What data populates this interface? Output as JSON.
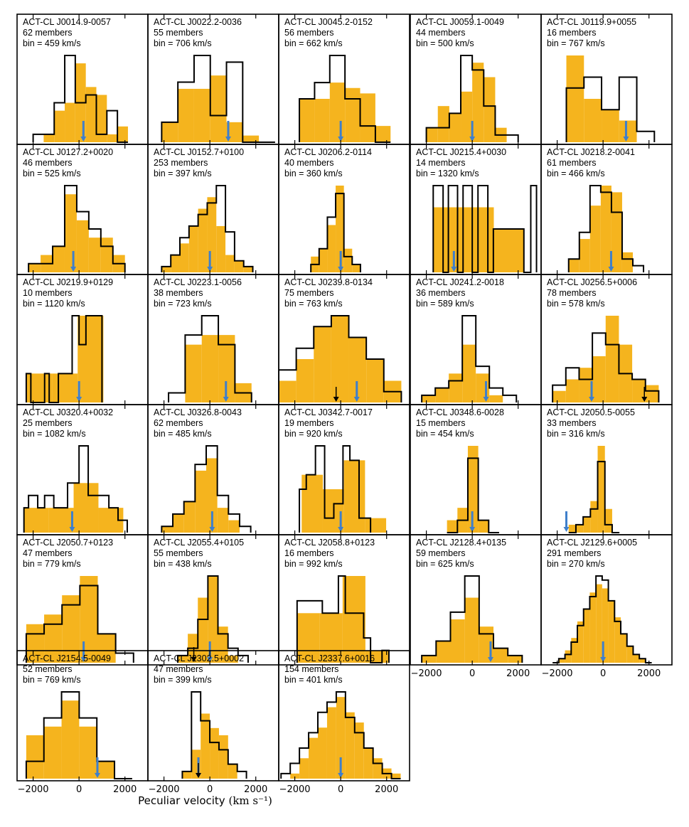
{
  "figure": {
    "xlabel_text": "Peculiar velocity",
    "xlabel_units": "(km s⁻¹)",
    "xaxis_range": [
      -2700,
      3000
    ],
    "xticks": [
      -2000,
      0,
      2000
    ],
    "xtick_labels": [
      "−2000",
      "0",
      "2000"
    ],
    "colors": {
      "filled": "#F5B41E",
      "outline": "#000000",
      "arrow_blue": "#3F7FCB",
      "arrow_black": "#000000",
      "frame": "#000000"
    }
  },
  "chart_data": [
    {
      "type": "histogram",
      "title": "ACT-CL J0014.9-0057",
      "members": "62 members",
      "bin": "bin = 459 km/s",
      "bin_edges": [
        -2000,
        -1541,
        -1082,
        -623,
        -164,
        295,
        754,
        1213,
        1672,
        2131
      ],
      "filled": [
        0,
        1,
        4,
        5,
        10,
        7,
        6,
        1,
        2
      ],
      "outline": [
        1,
        1,
        5,
        11,
        5,
        6,
        1,
        4,
        0
      ],
      "arrows": [
        {
          "v": 190,
          "color": "blue"
        }
      ]
    },
    {
      "type": "histogram",
      "title": "ACT-CL J0022.2-0036",
      "members": "55 members",
      "bin": "bin = 706 km/s",
      "bin_edges": [
        -2100,
        -1394,
        -688,
        18,
        724,
        1430,
        2136,
        2842
      ],
      "filled": [
        3,
        8,
        8,
        10,
        3,
        1,
        0
      ],
      "outline": [
        3,
        9,
        13,
        4,
        12,
        0,
        0
      ],
      "arrows": [
        {
          "v": 800,
          "color": "blue"
        }
      ]
    },
    {
      "type": "histogram",
      "title": "ACT-CL J0045.2-0152",
      "members": "56 members",
      "bin": "bin = 662 km/s",
      "bin_edges": [
        -1800,
        -1138,
        -476,
        186,
        848,
        1510,
        2172
      ],
      "filled": [
        8,
        8,
        11,
        10,
        9,
        3
      ],
      "outline": [
        8,
        11,
        16,
        8,
        3,
        0
      ],
      "arrows": [
        {
          "v": 0,
          "color": "blue"
        }
      ]
    },
    {
      "type": "histogram",
      "title": "ACT-CL J0059.1-0049",
      "members": "44 members",
      "bin": "bin = 500 km/s",
      "bin_edges": [
        -2000,
        -1500,
        -1000,
        -500,
        0,
        500,
        1000,
        1500,
        2000
      ],
      "filled": [
        2,
        5,
        4,
        7,
        11,
        9,
        2,
        0
      ],
      "outline": [
        2,
        2,
        4,
        12,
        10,
        5,
        1,
        1
      ],
      "arrows": [
        {
          "v": 0,
          "color": "blue"
        }
      ]
    },
    {
      "type": "histogram",
      "title": "ACT-CL J0119.9+0055",
      "members": "16 members",
      "bin": "bin = 767 km/s",
      "bin_edges": [
        -1600,
        -833,
        -66,
        701,
        1468,
        2235
      ],
      "filled": [
        8,
        4,
        3,
        2,
        0
      ],
      "outline": [
        5,
        6,
        3,
        6,
        1
      ],
      "arrows": [
        {
          "v": 1000,
          "color": "blue"
        }
      ]
    },
    {
      "type": "histogram",
      "title": "ACT-CL J0127.2+0020",
      "members": "46 members",
      "bin": "bin = 525 km/s",
      "bin_edges": [
        -2200,
        -1675,
        -1150,
        -625,
        -100,
        425,
        950,
        1475,
        2000
      ],
      "filled": [
        1,
        2,
        3,
        9,
        6,
        4,
        4,
        2
      ],
      "outline": [
        1,
        1,
        3,
        10,
        7,
        5,
        3,
        1
      ],
      "arrows": [
        {
          "v": -250,
          "color": "blue"
        }
      ]
    },
    {
      "type": "histogram",
      "title": "ACT-CL J0152.7+0100",
      "members": "253 members",
      "bin": "bin = 397 km/s",
      "bin_edges": [
        -2100,
        -1703,
        -1306,
        -909,
        -512,
        -115,
        282,
        679,
        1076,
        1473,
        1870
      ],
      "filled": [
        1,
        3,
        5,
        8,
        11,
        13,
        8,
        3,
        2,
        1
      ],
      "outline": [
        1,
        3,
        6,
        8,
        10,
        12,
        15,
        7,
        2,
        1
      ],
      "arrows": [
        {
          "v": 0,
          "color": "blue"
        }
      ]
    },
    {
      "type": "histogram",
      "title": "ACT-CL J0206.2-0114",
      "members": "40 members",
      "bin": "bin = 360 km/s",
      "bin_edges": [
        -1300,
        -940,
        -580,
        -220,
        140,
        500,
        860
      ],
      "filled": [
        2,
        3,
        6,
        11,
        3,
        1
      ],
      "outline": [
        1,
        3,
        7,
        10,
        2,
        1
      ],
      "arrows": [
        {
          "v": 0,
          "color": "blue"
        }
      ]
    },
    {
      "type": "histogram",
      "title": "ACT-CL J0215.4+0030",
      "members": "14 members",
      "bin": "bin = 1320 km/s",
      "bin_edges": [
        -1700,
        -380,
        940,
        2260
      ],
      "filled": [
        3,
        3,
        2
      ],
      "outline": [
        4,
        4,
        4
      ],
      "outline_edges": [
        -1700,
        -1270,
        -1040,
        -640,
        -400,
        0,
        250,
        680,
        920,
        2250,
        2550,
        2800
      ],
      "outline_steps": [
        4,
        0,
        4,
        0,
        4,
        0,
        4,
        0,
        2,
        0,
        4
      ],
      "arrows": [
        {
          "v": -800,
          "color": "blue"
        }
      ]
    },
    {
      "type": "histogram",
      "title": "ACT-CL J0218.2-0041",
      "members": "61 members",
      "bin": "bin = 466 km/s",
      "bin_edges": [
        -1500,
        -1034,
        -568,
        -102,
        364,
        830,
        1296,
        1762
      ],
      "filled": [
        2,
        5,
        10,
        13,
        12,
        3,
        0
      ],
      "outline": [
        2,
        6,
        13,
        12,
        9,
        2,
        1
      ],
      "arrows": [
        {
          "v": 350,
          "color": "blue"
        }
      ]
    },
    {
      "type": "histogram",
      "title": "ACT-CL J0219.9+0129",
      "members": "10 members",
      "bin": "bin = 1120 km/s",
      "bin_edges": [
        -2300,
        -1180,
        -60,
        1060
      ],
      "filled": [
        1,
        1,
        3
      ],
      "outline": [
        1,
        1,
        3
      ],
      "outline_edges": [
        -2300,
        -2100,
        -1500,
        -1300,
        -900,
        -300,
        0,
        300,
        1000
      ],
      "outline_steps": [
        1,
        0,
        1,
        0,
        1,
        3,
        2,
        3
      ],
      "arrows": [
        {
          "v": 0,
          "color": "blue"
        }
      ]
    },
    {
      "type": "histogram",
      "title": "ACT-CL J0223.1-0056",
      "members": "38 members",
      "bin": "bin = 723 km/s",
      "bin_edges": [
        -1800,
        -1077,
        -354,
        369,
        1092,
        1815
      ],
      "filled": [
        0,
        6,
        7,
        7,
        2
      ],
      "outline": [
        1,
        7,
        9,
        6,
        1
      ],
      "arrows": [
        {
          "v": 700,
          "color": "blue"
        }
      ]
    },
    {
      "type": "histogram",
      "title": "ACT-CL J0239.8-0134",
      "members": "75 members",
      "bin": "bin = 763 km/s",
      "bin_edges": [
        -2700,
        -1937,
        -1174,
        -411,
        352,
        1115,
        1878,
        2641
      ],
      "filled": [
        2,
        4,
        7,
        8,
        6,
        4,
        2
      ],
      "outline": [
        3,
        5,
        7,
        8,
        6,
        4,
        1
      ],
      "arrows": [
        {
          "v": 700,
          "color": "blue"
        },
        {
          "v": -200,
          "color": "black"
        }
      ]
    },
    {
      "type": "histogram",
      "title": "ACT-CL J0241.2-0018",
      "members": "36 members",
      "bin": "bin = 589 km/s",
      "bin_edges": [
        -2200,
        -1611,
        -1022,
        -433,
        156,
        745,
        1334,
        1923
      ],
      "filled": [
        1,
        2,
        4,
        8,
        4,
        1,
        0
      ],
      "outline": [
        1,
        2,
        3,
        12,
        5,
        2,
        1
      ],
      "arrows": [
        {
          "v": 600,
          "color": "blue"
        }
      ]
    },
    {
      "type": "histogram",
      "title": "ACT-CL J0256.5+0006",
      "members": "78 members",
      "bin": "bin = 578 km/s",
      "bin_edges": [
        -2200,
        -1622,
        -1044,
        -466,
        112,
        690,
        1268,
        1846,
        2424
      ],
      "filled": [
        2,
        4,
        6,
        8,
        15,
        10,
        4,
        3
      ],
      "outline": [
        3,
        6,
        4,
        12,
        10,
        5,
        4,
        2
      ],
      "arrows": [
        {
          "v": -500,
          "color": "blue"
        },
        {
          "v": 1800,
          "color": "black"
        }
      ]
    },
    {
      "type": "histogram",
      "title": "ACT-CL J0320.4+0032",
      "members": "25 members",
      "bin": "bin = 1082 km/s",
      "bin_edges": [
        -2400,
        -1318,
        -236,
        846,
        1928
      ],
      "filled": [
        2,
        2,
        4,
        2
      ],
      "outline": [
        2,
        2,
        5,
        2
      ],
      "outline_edges": [
        -2400,
        -2200,
        -1800,
        -1500,
        -1100,
        -500,
        0,
        400,
        800,
        1300,
        1700,
        2100
      ],
      "outline_steps": [
        2,
        3,
        2,
        3,
        2,
        4,
        7,
        3,
        3,
        2,
        1
      ],
      "arrows": [
        {
          "v": -300,
          "color": "blue"
        }
      ]
    },
    {
      "type": "histogram",
      "title": "ACT-CL J0326.8-0043",
      "members": "62 members",
      "bin": "bin = 485 km/s",
      "bin_edges": [
        -2100,
        -1615,
        -1130,
        -645,
        -160,
        325,
        810,
        1295,
        1780
      ],
      "filled": [
        1,
        3,
        5,
        10,
        12,
        4,
        2,
        0
      ],
      "outline": [
        1,
        3,
        5,
        11,
        14,
        6,
        3,
        1
      ],
      "arrows": [
        {
          "v": 100,
          "color": "blue"
        }
      ]
    },
    {
      "type": "histogram",
      "title": "ACT-CL J0342.7-0017",
      "members": "19 members",
      "bin": "bin = 920 km/s",
      "bin_edges": [
        -1700,
        -780,
        140,
        1060,
        1980
      ],
      "filled": [
        4,
        3,
        5,
        1
      ],
      "outline": [
        5,
        2,
        6,
        1
      ],
      "outline_edges": [
        -1800,
        -1500,
        -1100,
        -700,
        -300,
        100,
        400,
        800,
        1300
      ],
      "outline_steps": [
        3,
        4,
        6,
        1,
        2,
        6,
        5,
        1
      ],
      "arrows": [
        {
          "v": 0,
          "color": "blue"
        }
      ]
    },
    {
      "type": "histogram",
      "title": "ACT-CL J0348.6-0028",
      "members": "15 members",
      "bin": "bin = 454 km/s",
      "bin_edges": [
        -1100,
        -646,
        -192,
        262,
        716,
        1170
      ],
      "filled": [
        1,
        2,
        7,
        1,
        0
      ],
      "outline": [
        0,
        1,
        6,
        1,
        0
      ],
      "arrows": [
        {
          "v": 0,
          "color": "blue"
        }
      ]
    },
    {
      "type": "histogram",
      "title": "ACT-CL J2050.5-0055",
      "members": "33 members",
      "bin": "bin = 316 km/s",
      "bin_edges": [
        -1500,
        -1184,
        -868,
        -552,
        -236,
        80,
        396,
        712
      ],
      "filled": [
        1,
        1,
        2,
        4,
        11,
        3,
        0
      ],
      "outline": [
        0,
        1,
        2,
        3,
        9,
        1,
        0
      ],
      "arrows": [
        {
          "v": -1600,
          "color": "blue"
        }
      ]
    },
    {
      "type": "histogram",
      "title": "ACT-CL J2050.7+0123",
      "members": "47 members",
      "bin": "bin = 779 km/s",
      "bin_edges": [
        -2300,
        -1521,
        -742,
        37,
        816,
        1595,
        2374
      ],
      "filled": [
        4,
        5,
        7,
        9,
        3,
        0
      ],
      "outline": [
        3,
        4,
        6,
        8,
        3,
        1
      ],
      "arrows": [
        {
          "v": 200,
          "color": "blue"
        }
      ]
    },
    {
      "type": "histogram",
      "title": "ACT-CL J2055.4+0105",
      "members": "55 members",
      "bin": "bin = 438 km/s",
      "bin_edges": [
        -1400,
        -962,
        -524,
        -86,
        352,
        790,
        1228,
        1666
      ],
      "filled": [
        1,
        4,
        9,
        12,
        5,
        1,
        0
      ],
      "outline": [
        1,
        2,
        6,
        12,
        4,
        2,
        1
      ],
      "arrows": [
        {
          "v": 0,
          "color": "blue"
        },
        {
          "v": -700,
          "color": "black"
        }
      ]
    },
    {
      "type": "histogram",
      "title": "ACT-CL J2058.8+0123",
      "members": "16 members",
      "bin": "bin = 992 km/s",
      "bin_edges": [
        -1900,
        -908,
        84,
        1076,
        2068
      ],
      "filled": [
        4,
        4,
        7,
        1
      ],
      "outline": [
        5,
        3,
        7,
        1
      ],
      "outline_edges": [
        -1900,
        -800,
        -100,
        200,
        1000,
        1300,
        1800,
        2100
      ],
      "outline_steps": [
        5,
        4,
        7,
        4,
        2,
        0,
        1
      ],
      "arrows": []
    },
    {
      "type": "histogram",
      "title": "ACT-CL J2128.4+0135",
      "members": "59 members",
      "bin": "bin = 625 km/s",
      "bin_edges": [
        -2200,
        -1575,
        -950,
        -325,
        300,
        925,
        1550,
        2175
      ],
      "filled": [
        1,
        3,
        6,
        9,
        5,
        2,
        1
      ],
      "outline": [
        1,
        3,
        7,
        12,
        4,
        2,
        1
      ],
      "arrows": [
        {
          "v": 800,
          "color": "blue"
        }
      ]
    },
    {
      "type": "histogram",
      "title": "ACT-CL J2129.6+0005",
      "members": "291 members",
      "bin": "bin = 270 km/s",
      "bin_edges": [
        -2200,
        -1930,
        -1660,
        -1390,
        -1120,
        -850,
        -580,
        -310,
        -40,
        230,
        500,
        770,
        1040,
        1310,
        1580,
        1850,
        2120
      ],
      "filled": [
        0,
        1,
        3,
        6,
        10,
        13,
        17,
        19,
        18,
        15,
        11,
        7,
        4,
        2,
        1,
        0
      ],
      "outline": [
        0,
        1,
        2,
        5,
        9,
        13,
        16,
        21,
        20,
        15,
        10,
        7,
        4,
        2,
        1,
        0
      ],
      "arrows": [
        {
          "v": 0,
          "color": "blue"
        }
      ]
    },
    {
      "type": "histogram",
      "title": "ACT-CL J2154.5-0049",
      "members": "52 members",
      "bin": "bin = 769 km/s",
      "bin_edges": [
        -2300,
        -1531,
        -762,
        7,
        776,
        1545,
        2314
      ],
      "filled": [
        5,
        6,
        9,
        6,
        2,
        0
      ],
      "outline": [
        2,
        7,
        10,
        7,
        2,
        0
      ],
      "arrows": [
        {
          "v": 800,
          "color": "blue"
        }
      ]
    },
    {
      "type": "histogram",
      "title": "ACT-CL J2302.5+0002",
      "members": "47 members",
      "bin": "bin = 399 km/s",
      "bin_edges": [
        -1200,
        -801,
        -402,
        -3,
        396,
        795,
        1194,
        1593
      ],
      "filled": [
        1,
        4,
        9,
        7,
        6,
        2,
        0
      ],
      "outline": [
        1,
        12,
        8,
        5,
        4,
        2,
        1
      ],
      "arrows": [
        {
          "v": -500,
          "color": "blue"
        },
        {
          "v": -500,
          "color": "black"
        }
      ]
    },
    {
      "type": "histogram",
      "title": "ACT-CL J2337.6+0016",
      "members": "154 members",
      "bin": "bin = 401 km/s",
      "bin_edges": [
        -2600,
        -2199,
        -1798,
        -1397,
        -996,
        -595,
        -194,
        207,
        608,
        1009,
        1410,
        1811,
        2212,
        2613
      ],
      "filled": [
        0,
        1,
        4,
        8,
        10,
        14,
        16,
        13,
        11,
        6,
        4,
        2,
        1
      ],
      "outline": [
        1,
        3,
        6,
        9,
        13,
        15,
        17,
        12,
        9,
        6,
        3,
        1,
        0
      ],
      "arrows": [
        {
          "v": 0,
          "color": "blue"
        }
      ]
    }
  ]
}
